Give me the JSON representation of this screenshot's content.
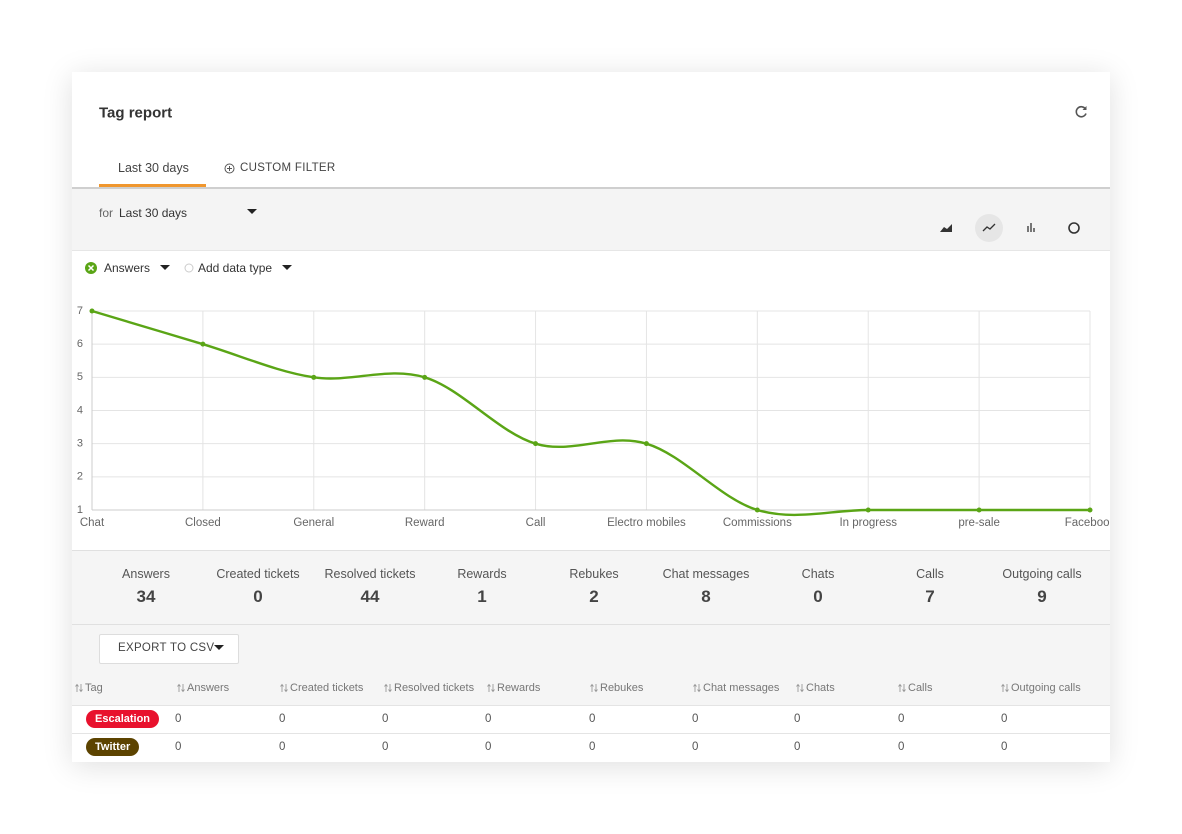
{
  "header": {
    "title": "Tag report"
  },
  "tabs": [
    "Last 30 days",
    "CUSTOM FILTER"
  ],
  "period": {
    "prefix": "for",
    "value": "Last 30 days"
  },
  "add_data_type": "Add data type",
  "chart_data": {
    "type": "line",
    "categories": [
      "Chat",
      "Closed",
      "General",
      "Reward",
      "Call",
      "Electro mobiles",
      "Commissions",
      "In progress",
      "pre-sale",
      "Facebook"
    ],
    "series": [
      {
        "name": "Answers",
        "color": "#5aa516",
        "values": [
          7,
          6,
          5,
          5,
          3,
          3,
          1,
          1,
          1,
          1
        ]
      }
    ],
    "ylim": [
      1,
      7
    ],
    "yticks": [
      1,
      2,
      3,
      4,
      5,
      6,
      7
    ],
    "grid": true
  },
  "stats": [
    {
      "label": "Answers",
      "value": 34
    },
    {
      "label": "Created tickets",
      "value": 0
    },
    {
      "label": "Resolved tickets",
      "value": 44
    },
    {
      "label": "Rewards",
      "value": 1
    },
    {
      "label": "Rebukes",
      "value": 2
    },
    {
      "label": "Chat messages",
      "value": 8
    },
    {
      "label": "Chats",
      "value": 0
    },
    {
      "label": "Calls",
      "value": 7
    },
    {
      "label": "Outgoing calls",
      "value": 9
    }
  ],
  "export_button": "EXPORT TO CSV",
  "table": {
    "columns": [
      "Tag",
      "Answers",
      "Created tickets",
      "Resolved tickets",
      "Rewards",
      "Rebukes",
      "Chat messages",
      "Chats",
      "Calls",
      "Outgoing calls"
    ],
    "rows": [
      {
        "tag": "Escalation",
        "color": "#e8112d",
        "values": [
          0,
          0,
          0,
          0,
          0,
          0,
          0,
          0,
          0
        ]
      },
      {
        "tag": "Twitter",
        "color": "#5c4300",
        "values": [
          0,
          0,
          0,
          0,
          0,
          0,
          0,
          0,
          0
        ]
      }
    ]
  }
}
